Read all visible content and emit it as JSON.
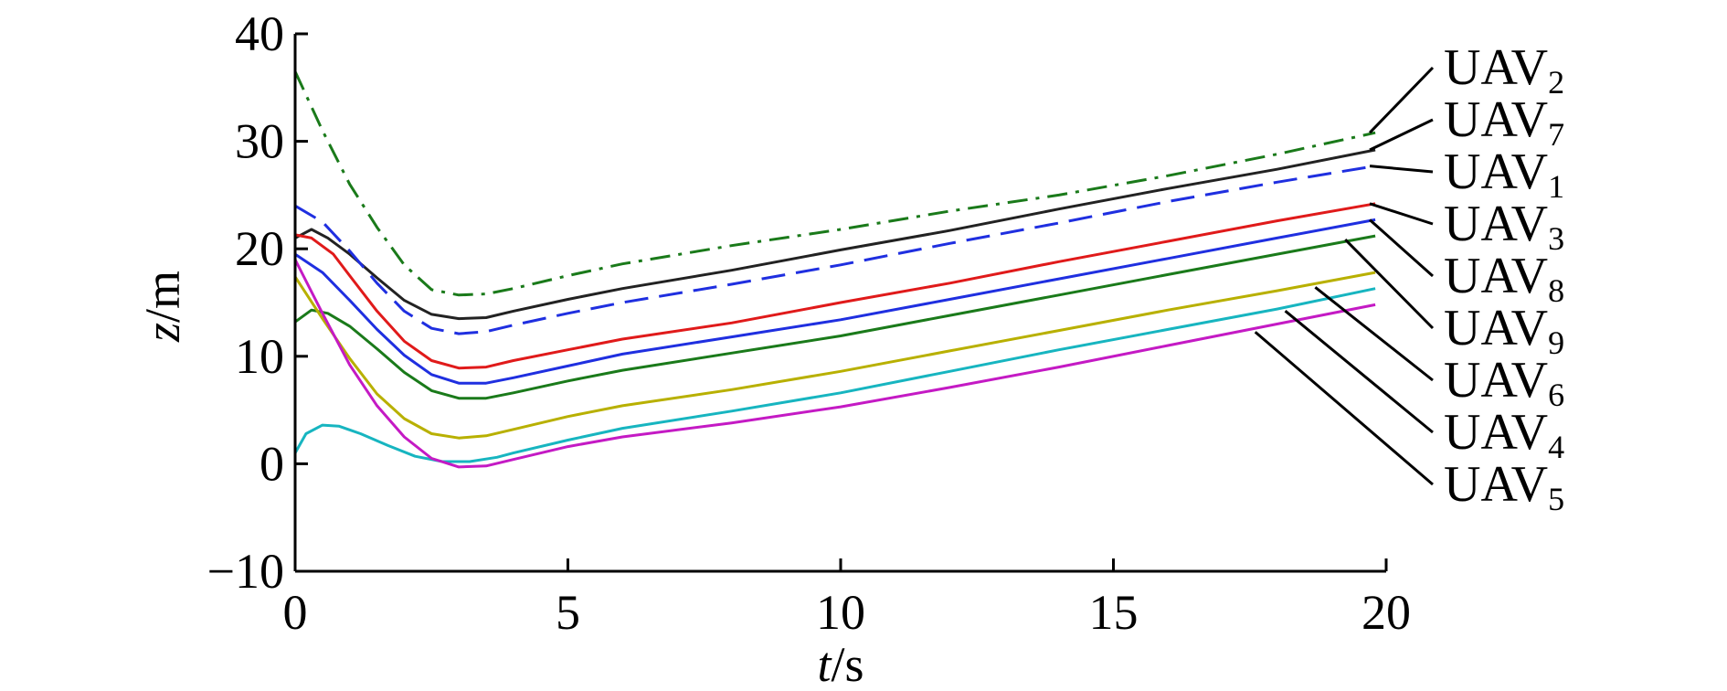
{
  "chart_data": {
    "type": "line",
    "xlabel_var": "t",
    "xlabel_unit": "/s",
    "ylabel_var": "z",
    "ylabel_unit": "/m",
    "xlim": [
      0,
      20
    ],
    "ylim": [
      -10,
      40
    ],
    "xticks": [
      0,
      5,
      10,
      15,
      20
    ],
    "yticks": [
      -10,
      0,
      10,
      20,
      30,
      40
    ],
    "xtick_labels": [
      "0",
      "5",
      "10",
      "15",
      "20"
    ],
    "ytick_labels": [
      "−10",
      "0",
      "10",
      "20",
      "30",
      "40"
    ],
    "grid": false,
    "legend": "right, leader lines to line ends",
    "legend_order": [
      "UAV2",
      "UAV7",
      "UAV1",
      "UAV3",
      "UAV8",
      "UAV9",
      "UAV6",
      "UAV4",
      "UAV5"
    ],
    "series": [
      {
        "name": "UAV2",
        "base": "UAV",
        "sub": "2",
        "color": "#1a7a1a",
        "dash": "dashdot",
        "values": [
          [
            0,
            36.5
          ],
          [
            0.5,
            31
          ],
          [
            1,
            26
          ],
          [
            1.5,
            22
          ],
          [
            2,
            18.5
          ],
          [
            2.5,
            16.2
          ],
          [
            3,
            15.7
          ],
          [
            3.5,
            15.8
          ],
          [
            4,
            16.3
          ],
          [
            5,
            17.5
          ],
          [
            6,
            18.6
          ],
          [
            8,
            20.3
          ],
          [
            10,
            21.8
          ],
          [
            12,
            23.5
          ],
          [
            14,
            25
          ],
          [
            16,
            26.8
          ],
          [
            18,
            28.8
          ],
          [
            19.8,
            30.8
          ]
        ]
      },
      {
        "name": "UAV7",
        "base": "UAV",
        "sub": "7",
        "color": "#222222",
        "dash": "solid",
        "values": [
          [
            0,
            21
          ],
          [
            0.3,
            21.8
          ],
          [
            0.6,
            21
          ],
          [
            1,
            19.5
          ],
          [
            1.5,
            17.3
          ],
          [
            2,
            15.2
          ],
          [
            2.5,
            13.9
          ],
          [
            3,
            13.5
          ],
          [
            3.5,
            13.6
          ],
          [
            4,
            14.2
          ],
          [
            5,
            15.3
          ],
          [
            6,
            16.3
          ],
          [
            8,
            18
          ],
          [
            10,
            19.9
          ],
          [
            12,
            21.7
          ],
          [
            14,
            23.7
          ],
          [
            16,
            25.6
          ],
          [
            18,
            27.4
          ],
          [
            19.8,
            29.2
          ]
        ]
      },
      {
        "name": "UAV1",
        "base": "UAV",
        "sub": "1",
        "color": "#1f2fe0",
        "dash": "dashed",
        "values": [
          [
            0,
            24
          ],
          [
            0.5,
            22.5
          ],
          [
            1,
            19.8
          ],
          [
            1.5,
            16.8
          ],
          [
            2,
            14.2
          ],
          [
            2.5,
            12.6
          ],
          [
            3,
            12.1
          ],
          [
            3.5,
            12.3
          ],
          [
            4,
            12.9
          ],
          [
            5,
            14
          ],
          [
            6,
            15
          ],
          [
            8,
            16.7
          ],
          [
            10,
            18.5
          ],
          [
            12,
            20.5
          ],
          [
            14,
            22.4
          ],
          [
            16,
            24.4
          ],
          [
            18,
            26.2
          ],
          [
            19.8,
            27.7
          ]
        ]
      },
      {
        "name": "UAV3",
        "base": "UAV",
        "sub": "3",
        "color": "#e01a1a",
        "dash": "solid",
        "values": [
          [
            0,
            21.3
          ],
          [
            0.3,
            21
          ],
          [
            0.7,
            19.5
          ],
          [
            1,
            17.5
          ],
          [
            1.5,
            14.2
          ],
          [
            2,
            11.4
          ],
          [
            2.5,
            9.6
          ],
          [
            3,
            8.9
          ],
          [
            3.5,
            9
          ],
          [
            4,
            9.6
          ],
          [
            5,
            10.6
          ],
          [
            6,
            11.6
          ],
          [
            8,
            13.1
          ],
          [
            10,
            15
          ],
          [
            12,
            16.8
          ],
          [
            14,
            18.8
          ],
          [
            16,
            20.7
          ],
          [
            18,
            22.6
          ],
          [
            19.8,
            24.2
          ]
        ]
      },
      {
        "name": "UAV8",
        "base": "UAV",
        "sub": "8",
        "color": "#1f2fe0",
        "dash": "solid",
        "values": [
          [
            0,
            19.5
          ],
          [
            0.5,
            17.8
          ],
          [
            1,
            15.2
          ],
          [
            1.5,
            12.5
          ],
          [
            2,
            10.1
          ],
          [
            2.5,
            8.3
          ],
          [
            3,
            7.5
          ],
          [
            3.5,
            7.5
          ],
          [
            4,
            8
          ],
          [
            5,
            9.1
          ],
          [
            6,
            10.2
          ],
          [
            8,
            11.8
          ],
          [
            10,
            13.4
          ],
          [
            12,
            15.3
          ],
          [
            14,
            17.2
          ],
          [
            16,
            19.1
          ],
          [
            18,
            21
          ],
          [
            19.8,
            22.7
          ]
        ]
      },
      {
        "name": "UAV9",
        "base": "UAV",
        "sub": "9",
        "color": "#1a7a1a",
        "dash": "solid",
        "values": [
          [
            0,
            13.2
          ],
          [
            0.3,
            14.3
          ],
          [
            0.6,
            14
          ],
          [
            1,
            12.8
          ],
          [
            1.5,
            10.7
          ],
          [
            2,
            8.5
          ],
          [
            2.5,
            6.8
          ],
          [
            3,
            6.1
          ],
          [
            3.5,
            6.1
          ],
          [
            4,
            6.6
          ],
          [
            5,
            7.7
          ],
          [
            6,
            8.7
          ],
          [
            8,
            10.3
          ],
          [
            10,
            11.9
          ],
          [
            12,
            13.8
          ],
          [
            14,
            15.7
          ],
          [
            16,
            17.6
          ],
          [
            18,
            19.5
          ],
          [
            19.8,
            21.2
          ]
        ]
      },
      {
        "name": "UAV6",
        "base": "UAV",
        "sub": "6",
        "color": "#b8b000",
        "dash": "solid",
        "values": [
          [
            0,
            17.4
          ],
          [
            0.5,
            13.5
          ],
          [
            1,
            9.8
          ],
          [
            1.5,
            6.5
          ],
          [
            2,
            4.2
          ],
          [
            2.5,
            2.8
          ],
          [
            3,
            2.4
          ],
          [
            3.5,
            2.6
          ],
          [
            4,
            3.2
          ],
          [
            5,
            4.4
          ],
          [
            6,
            5.4
          ],
          [
            8,
            6.9
          ],
          [
            10,
            8.6
          ],
          [
            12,
            10.5
          ],
          [
            14,
            12.4
          ],
          [
            16,
            14.3
          ],
          [
            18,
            16.1
          ],
          [
            19.8,
            17.8
          ]
        ]
      },
      {
        "name": "UAV4",
        "base": "UAV",
        "sub": "4",
        "color": "#17b5c0",
        "dash": "solid",
        "values": [
          [
            0,
            1
          ],
          [
            0.2,
            2.8
          ],
          [
            0.5,
            3.6
          ],
          [
            0.8,
            3.5
          ],
          [
            1.2,
            2.8
          ],
          [
            1.7,
            1.7
          ],
          [
            2.2,
            0.7
          ],
          [
            2.7,
            0.2
          ],
          [
            3.2,
            0.2
          ],
          [
            3.7,
            0.6
          ],
          [
            4,
            1
          ],
          [
            5,
            2.2
          ],
          [
            6,
            3.3
          ],
          [
            8,
            4.9
          ],
          [
            10,
            6.6
          ],
          [
            12,
            8.6
          ],
          [
            14,
            10.6
          ],
          [
            16,
            12.5
          ],
          [
            18,
            14.4
          ],
          [
            19.8,
            16.3
          ]
        ]
      },
      {
        "name": "UAV5",
        "base": "UAV",
        "sub": "5",
        "color": "#c41ac4",
        "dash": "solid",
        "values": [
          [
            0,
            19
          ],
          [
            0.5,
            14
          ],
          [
            1,
            9.2
          ],
          [
            1.5,
            5.4
          ],
          [
            2,
            2.5
          ],
          [
            2.5,
            0.5
          ],
          [
            3,
            -0.3
          ],
          [
            3.5,
            -0.2
          ],
          [
            4,
            0.4
          ],
          [
            5,
            1.6
          ],
          [
            6,
            2.5
          ],
          [
            8,
            3.8
          ],
          [
            10,
            5.3
          ],
          [
            12,
            7.1
          ],
          [
            14,
            9
          ],
          [
            16,
            11
          ],
          [
            18,
            13
          ],
          [
            19.8,
            14.8
          ]
        ]
      }
    ]
  }
}
